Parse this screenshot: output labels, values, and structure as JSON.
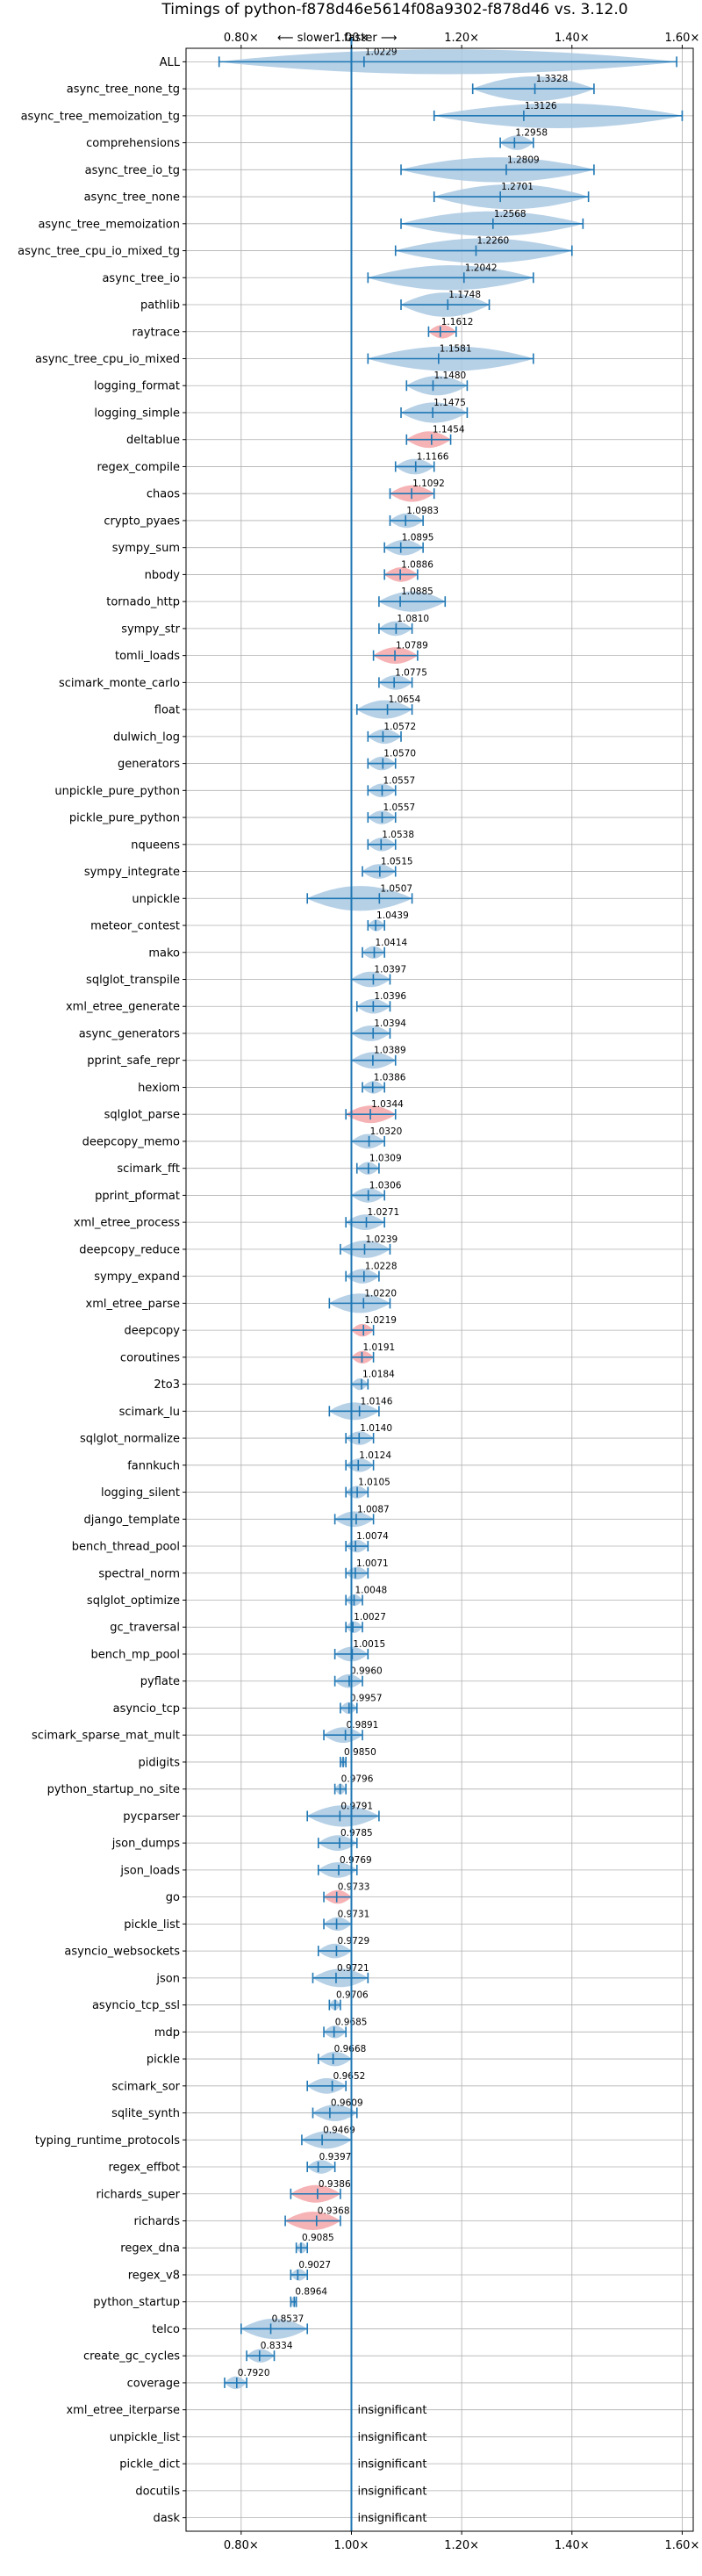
{
  "chart_data": {
    "type": "violin",
    "title": "Timings of python-f878d46e5614f08a9302-f878d46 vs. 3.12.0",
    "direction_left": "⟵ slower",
    "direction_right": "faster ⟶",
    "xlim": [
      0.7,
      1.62
    ],
    "x_ticks": [
      0.8,
      1.0,
      1.2,
      1.4,
      1.6
    ],
    "x_tick_labels": [
      "0.80×",
      "1.00×",
      "1.20×",
      "1.40×",
      "1.60×"
    ],
    "reference_line": 1.0,
    "grid": true,
    "colors": {
      "normal": "#a9c8e2",
      "highlight": "#f4a6a8",
      "line": "#1f77b4",
      "grid": "#b0b0b0"
    },
    "insignificant_label": "insignificant",
    "benchmarks": [
      {
        "name": "ALL",
        "value": 1.0229,
        "min": 0.76,
        "max": 1.59,
        "highlight": false
      },
      {
        "name": "async_tree_none_tg",
        "value": 1.3328,
        "min": 1.22,
        "max": 1.44,
        "highlight": false
      },
      {
        "name": "async_tree_memoization_tg",
        "value": 1.3126,
        "min": 1.15,
        "max": 1.6,
        "highlight": false
      },
      {
        "name": "comprehensions",
        "value": 1.2958,
        "min": 1.27,
        "max": 1.33,
        "highlight": false
      },
      {
        "name": "async_tree_io_tg",
        "value": 1.2809,
        "min": 1.09,
        "max": 1.44,
        "highlight": false
      },
      {
        "name": "async_tree_none",
        "value": 1.2701,
        "min": 1.15,
        "max": 1.43,
        "highlight": false
      },
      {
        "name": "async_tree_memoization",
        "value": 1.2568,
        "min": 1.09,
        "max": 1.42,
        "highlight": false
      },
      {
        "name": "async_tree_cpu_io_mixed_tg",
        "value": 1.226,
        "min": 1.08,
        "max": 1.4,
        "highlight": false
      },
      {
        "name": "async_tree_io",
        "value": 1.2042,
        "min": 1.03,
        "max": 1.33,
        "highlight": false
      },
      {
        "name": "pathlib",
        "value": 1.1748,
        "min": 1.09,
        "max": 1.25,
        "highlight": false
      },
      {
        "name": "raytrace",
        "value": 1.1612,
        "min": 1.14,
        "max": 1.19,
        "highlight": true
      },
      {
        "name": "async_tree_cpu_io_mixed",
        "value": 1.1581,
        "min": 1.03,
        "max": 1.33,
        "highlight": false
      },
      {
        "name": "logging_format",
        "value": 1.148,
        "min": 1.1,
        "max": 1.21,
        "highlight": false
      },
      {
        "name": "logging_simple",
        "value": 1.1475,
        "min": 1.09,
        "max": 1.21,
        "highlight": false
      },
      {
        "name": "deltablue",
        "value": 1.1454,
        "min": 1.1,
        "max": 1.18,
        "highlight": true
      },
      {
        "name": "regex_compile",
        "value": 1.1166,
        "min": 1.08,
        "max": 1.15,
        "highlight": false
      },
      {
        "name": "chaos",
        "value": 1.1092,
        "min": 1.07,
        "max": 1.15,
        "highlight": true
      },
      {
        "name": "crypto_pyaes",
        "value": 1.0983,
        "min": 1.07,
        "max": 1.13,
        "highlight": false
      },
      {
        "name": "sympy_sum",
        "value": 1.0895,
        "min": 1.06,
        "max": 1.13,
        "highlight": false
      },
      {
        "name": "nbody",
        "value": 1.0886,
        "min": 1.06,
        "max": 1.12,
        "highlight": true
      },
      {
        "name": "tornado_http",
        "value": 1.0885,
        "min": 1.05,
        "max": 1.17,
        "highlight": false
      },
      {
        "name": "sympy_str",
        "value": 1.081,
        "min": 1.05,
        "max": 1.11,
        "highlight": false
      },
      {
        "name": "tomli_loads",
        "value": 1.0789,
        "min": 1.04,
        "max": 1.12,
        "highlight": true
      },
      {
        "name": "scimark_monte_carlo",
        "value": 1.0775,
        "min": 1.05,
        "max": 1.11,
        "highlight": false
      },
      {
        "name": "float",
        "value": 1.0654,
        "min": 1.01,
        "max": 1.11,
        "highlight": false
      },
      {
        "name": "dulwich_log",
        "value": 1.0572,
        "min": 1.03,
        "max": 1.09,
        "highlight": false
      },
      {
        "name": "generators",
        "value": 1.057,
        "min": 1.03,
        "max": 1.08,
        "highlight": false
      },
      {
        "name": "unpickle_pure_python",
        "value": 1.0557,
        "min": 1.03,
        "max": 1.08,
        "highlight": false
      },
      {
        "name": "pickle_pure_python",
        "value": 1.0557,
        "min": 1.03,
        "max": 1.08,
        "highlight": false
      },
      {
        "name": "nqueens",
        "value": 1.0538,
        "min": 1.03,
        "max": 1.08,
        "highlight": false
      },
      {
        "name": "sympy_integrate",
        "value": 1.0515,
        "min": 1.02,
        "max": 1.08,
        "highlight": false
      },
      {
        "name": "unpickle",
        "value": 1.0507,
        "min": 0.92,
        "max": 1.11,
        "highlight": false
      },
      {
        "name": "meteor_contest",
        "value": 1.0439,
        "min": 1.03,
        "max": 1.06,
        "highlight": false
      },
      {
        "name": "mako",
        "value": 1.0414,
        "min": 1.02,
        "max": 1.06,
        "highlight": false
      },
      {
        "name": "sqlglot_transpile",
        "value": 1.0397,
        "min": 1.0,
        "max": 1.07,
        "highlight": false
      },
      {
        "name": "xml_etree_generate",
        "value": 1.0396,
        "min": 1.01,
        "max": 1.07,
        "highlight": false
      },
      {
        "name": "async_generators",
        "value": 1.0394,
        "min": 1.0,
        "max": 1.07,
        "highlight": false
      },
      {
        "name": "pprint_safe_repr",
        "value": 1.0389,
        "min": 1.0,
        "max": 1.08,
        "highlight": false
      },
      {
        "name": "hexiom",
        "value": 1.0386,
        "min": 1.02,
        "max": 1.06,
        "highlight": false
      },
      {
        "name": "sqlglot_parse",
        "value": 1.0344,
        "min": 0.99,
        "max": 1.08,
        "highlight": true
      },
      {
        "name": "deepcopy_memo",
        "value": 1.032,
        "min": 1.0,
        "max": 1.06,
        "highlight": false
      },
      {
        "name": "scimark_fft",
        "value": 1.0309,
        "min": 1.01,
        "max": 1.05,
        "highlight": false
      },
      {
        "name": "pprint_pformat",
        "value": 1.0306,
        "min": 1.0,
        "max": 1.06,
        "highlight": false
      },
      {
        "name": "xml_etree_process",
        "value": 1.0271,
        "min": 0.99,
        "max": 1.06,
        "highlight": false
      },
      {
        "name": "deepcopy_reduce",
        "value": 1.0239,
        "min": 0.98,
        "max": 1.07,
        "highlight": false
      },
      {
        "name": "sympy_expand",
        "value": 1.0228,
        "min": 0.99,
        "max": 1.05,
        "highlight": false
      },
      {
        "name": "xml_etree_parse",
        "value": 1.022,
        "min": 0.96,
        "max": 1.07,
        "highlight": false
      },
      {
        "name": "deepcopy",
        "value": 1.0219,
        "min": 1.0,
        "max": 1.04,
        "highlight": true
      },
      {
        "name": "coroutines",
        "value": 1.0191,
        "min": 1.0,
        "max": 1.04,
        "highlight": true
      },
      {
        "name": "2to3",
        "value": 1.0184,
        "min": 1.0,
        "max": 1.03,
        "highlight": false
      },
      {
        "name": "scimark_lu",
        "value": 1.0146,
        "min": 0.96,
        "max": 1.05,
        "highlight": false
      },
      {
        "name": "sqlglot_normalize",
        "value": 1.014,
        "min": 0.99,
        "max": 1.04,
        "highlight": false
      },
      {
        "name": "fannkuch",
        "value": 1.0124,
        "min": 0.99,
        "max": 1.04,
        "highlight": false
      },
      {
        "name": "logging_silent",
        "value": 1.0105,
        "min": 0.99,
        "max": 1.03,
        "highlight": false
      },
      {
        "name": "django_template",
        "value": 1.0087,
        "min": 0.97,
        "max": 1.04,
        "highlight": false
      },
      {
        "name": "bench_thread_pool",
        "value": 1.0074,
        "min": 0.99,
        "max": 1.03,
        "highlight": false
      },
      {
        "name": "spectral_norm",
        "value": 1.0071,
        "min": 0.99,
        "max": 1.03,
        "highlight": false
      },
      {
        "name": "sqlglot_optimize",
        "value": 1.0048,
        "min": 0.99,
        "max": 1.02,
        "highlight": false
      },
      {
        "name": "gc_traversal",
        "value": 1.0027,
        "min": 0.99,
        "max": 1.02,
        "highlight": false
      },
      {
        "name": "bench_mp_pool",
        "value": 1.0015,
        "min": 0.97,
        "max": 1.03,
        "highlight": false
      },
      {
        "name": "pyflate",
        "value": 0.996,
        "min": 0.97,
        "max": 1.02,
        "highlight": false
      },
      {
        "name": "asyncio_tcp",
        "value": 0.9957,
        "min": 0.98,
        "max": 1.01,
        "highlight": false
      },
      {
        "name": "scimark_sparse_mat_mult",
        "value": 0.9891,
        "min": 0.95,
        "max": 1.02,
        "highlight": false
      },
      {
        "name": "pidigits",
        "value": 0.985,
        "min": 0.98,
        "max": 0.99,
        "highlight": false
      },
      {
        "name": "python_startup_no_site",
        "value": 0.9796,
        "min": 0.97,
        "max": 0.99,
        "highlight": false
      },
      {
        "name": "pycparser",
        "value": 0.9791,
        "min": 0.92,
        "max": 1.05,
        "highlight": false
      },
      {
        "name": "json_dumps",
        "value": 0.9785,
        "min": 0.94,
        "max": 1.01,
        "highlight": false
      },
      {
        "name": "json_loads",
        "value": 0.9769,
        "min": 0.94,
        "max": 1.01,
        "highlight": false
      },
      {
        "name": "go",
        "value": 0.9733,
        "min": 0.95,
        "max": 1.0,
        "highlight": true
      },
      {
        "name": "pickle_list",
        "value": 0.9731,
        "min": 0.95,
        "max": 1.0,
        "highlight": false
      },
      {
        "name": "asyncio_websockets",
        "value": 0.9729,
        "min": 0.94,
        "max": 1.0,
        "highlight": false
      },
      {
        "name": "json",
        "value": 0.9721,
        "min": 0.93,
        "max": 1.03,
        "highlight": false
      },
      {
        "name": "asyncio_tcp_ssl",
        "value": 0.9706,
        "min": 0.96,
        "max": 0.98,
        "highlight": false
      },
      {
        "name": "mdp",
        "value": 0.9685,
        "min": 0.95,
        "max": 0.99,
        "highlight": false
      },
      {
        "name": "pickle",
        "value": 0.9668,
        "min": 0.94,
        "max": 1.0,
        "highlight": false
      },
      {
        "name": "scimark_sor",
        "value": 0.9652,
        "min": 0.92,
        "max": 0.99,
        "highlight": false
      },
      {
        "name": "sqlite_synth",
        "value": 0.9609,
        "min": 0.93,
        "max": 1.01,
        "highlight": false
      },
      {
        "name": "typing_runtime_protocols",
        "value": 0.9469,
        "min": 0.91,
        "max": 1.0,
        "highlight": false
      },
      {
        "name": "regex_effbot",
        "value": 0.9397,
        "min": 0.92,
        "max": 0.97,
        "highlight": false
      },
      {
        "name": "richards_super",
        "value": 0.9386,
        "min": 0.89,
        "max": 0.98,
        "highlight": true
      },
      {
        "name": "richards",
        "value": 0.9368,
        "min": 0.88,
        "max": 0.98,
        "highlight": true
      },
      {
        "name": "regex_dna",
        "value": 0.9085,
        "min": 0.9,
        "max": 0.92,
        "highlight": false
      },
      {
        "name": "regex_v8",
        "value": 0.9027,
        "min": 0.89,
        "max": 0.92,
        "highlight": false
      },
      {
        "name": "python_startup",
        "value": 0.8964,
        "min": 0.89,
        "max": 0.9,
        "highlight": false
      },
      {
        "name": "telco",
        "value": 0.8537,
        "min": 0.8,
        "max": 0.92,
        "highlight": false
      },
      {
        "name": "create_gc_cycles",
        "value": 0.8334,
        "min": 0.81,
        "max": 0.86,
        "highlight": false
      },
      {
        "name": "coverage",
        "value": 0.792,
        "min": 0.77,
        "max": 0.81,
        "highlight": false
      },
      {
        "name": "xml_etree_iterparse",
        "value": null,
        "highlight": false
      },
      {
        "name": "unpickle_list",
        "value": null,
        "highlight": false
      },
      {
        "name": "pickle_dict",
        "value": null,
        "highlight": false
      },
      {
        "name": "docutils",
        "value": null,
        "highlight": false
      },
      {
        "name": "dask",
        "value": null,
        "highlight": false
      }
    ]
  }
}
